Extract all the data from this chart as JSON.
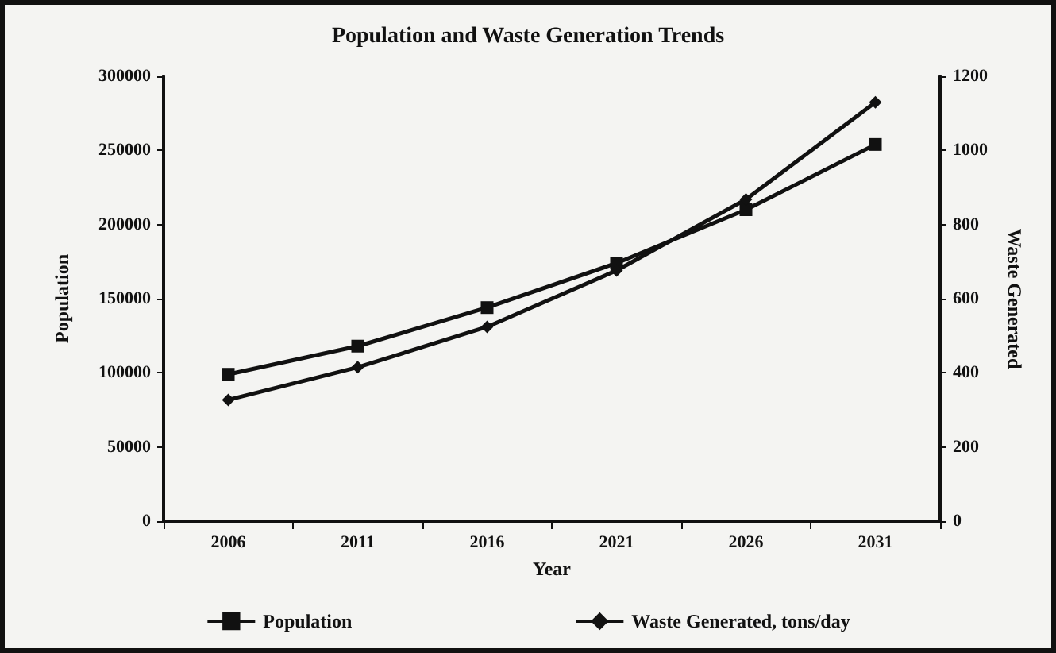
{
  "chart_data": {
    "type": "line",
    "title": "Population and Waste Generation Trends",
    "xlabel": "Year",
    "ylabel": "Population",
    "y2label": "Waste Generated",
    "categories": [
      "2006",
      "2011",
      "2016",
      "2021",
      "2026",
      "2031"
    ],
    "series": [
      {
        "name": "Population",
        "color": "#111111",
        "marker": "square",
        "values": [
          99000,
          118000,
          144000,
          174000,
          210000,
          254000
        ]
      },
      {
        "name": "Waste Generated, tons/day",
        "color": "#111111",
        "marker": "diamond",
        "axis": "y2",
        "values": [
          327,
          415,
          524,
          676,
          868,
          1130
        ]
      }
    ],
    "ylim": [
      0,
      300000
    ],
    "yticks": [
      0,
      50000,
      100000,
      150000,
      200000,
      250000,
      300000
    ],
    "y2lim": [
      0,
      1200
    ],
    "y2ticks": [
      0,
      200,
      400,
      600,
      800,
      1000,
      1200
    ],
    "grid": false,
    "legend": "bottom"
  }
}
